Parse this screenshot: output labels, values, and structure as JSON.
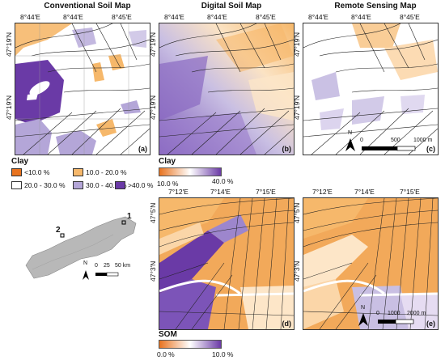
{
  "titles": {
    "conventional": "Conventional Soil Map",
    "digital": "Digital Soil Map",
    "remote": "Remote Sensing Map"
  },
  "top_lon_labels": {
    "a": [
      "8°44′E",
      "8°44′E",
      "8°45′E"
    ],
    "b": [
      "8°44′E",
      "8°44′E",
      "8°45′E"
    ],
    "c": [
      "8°44′E",
      "8°44′E",
      "8°45′E"
    ]
  },
  "top_lat_labels": [
    "47°19′N",
    "47°19′N"
  ],
  "bottom_lon_labels": {
    "d": [
      "7°12′E",
      "7°14′E",
      "7°15′E"
    ],
    "e": [
      "7°12′E",
      "7°14′E",
      "7°15′E"
    ]
  },
  "bottom_lat_labels": [
    "47°5′N",
    "47°3′N"
  ],
  "panel_labels": {
    "a": "(a)",
    "b": "(b)",
    "c": "(c)",
    "d": "(d)",
    "e": "(e)"
  },
  "scalebar_top": {
    "zero": "0",
    "mid": "500",
    "end": "1000 m"
  },
  "scalebar_bottom": {
    "zero": "0",
    "mid": "1000",
    "end": "2000 m"
  },
  "scalebar_overview": {
    "zero": "0",
    "mid": "25",
    "end": "50 km"
  },
  "north": "N",
  "overview_sites": [
    "1",
    "2"
  ],
  "clay_categorical_legend": {
    "title": "Clay",
    "items": [
      {
        "label": "<10.0 %",
        "color": "#e8731f"
      },
      {
        "label": "10.0 - 20.0 %",
        "color": "#f6b86b"
      },
      {
        "label": ">40.0 %",
        "color": "#6a3aa6"
      },
      {
        "label": "20.0 - 30.0 %",
        "color": "#ffffff"
      },
      {
        "label": "30.0 - 40.0 %",
        "color": "#b4a6d8"
      }
    ]
  },
  "clay_gradient_legend": {
    "title": "Clay",
    "min_label": "10.0 %",
    "max_label": "40.0 %",
    "colors": [
      "#e8731f",
      "#ffffff",
      "#6a3aa6"
    ]
  },
  "som_gradient_legend": {
    "title": "SOM",
    "min_label": "0.0 %",
    "max_label": "10.0 %",
    "colors": [
      "#e8731f",
      "#ffffff",
      "#6a3aa6"
    ]
  }
}
